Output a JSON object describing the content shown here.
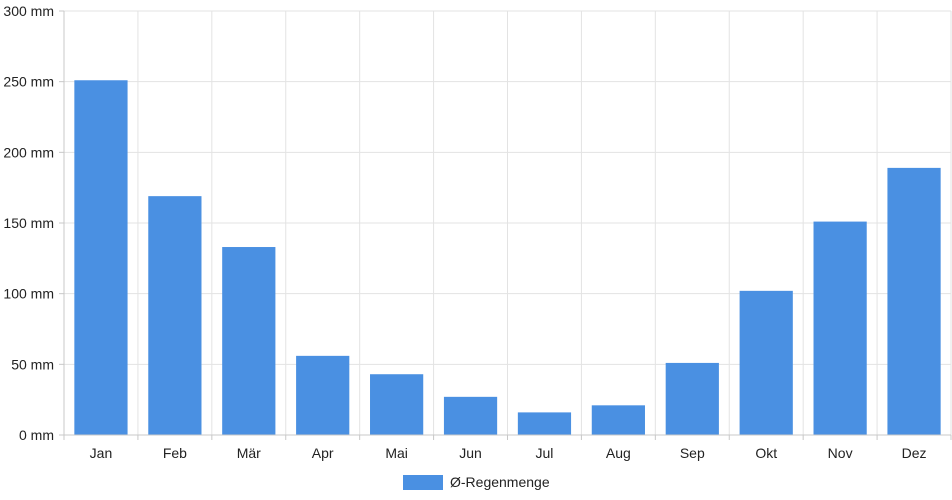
{
  "chart_data": {
    "type": "bar",
    "categories": [
      "Jan",
      "Feb",
      "Mär",
      "Apr",
      "Mai",
      "Jun",
      "Jul",
      "Aug",
      "Sep",
      "Okt",
      "Nov",
      "Dez"
    ],
    "series": [
      {
        "name": "Ø-Regenmenge",
        "values": [
          251,
          169,
          133,
          56,
          43,
          27,
          16,
          21,
          51,
          102,
          151,
          189
        ]
      }
    ],
    "y_ticks": [
      "0 mm",
      "50 mm",
      "100 mm",
      "150 mm",
      "200 mm",
      "250 mm",
      "300 mm"
    ],
    "ylim": [
      0,
      300
    ],
    "y_unit": "mm",
    "grid": true,
    "legend": "bottom-center",
    "colors": {
      "bar": "#4a90e2",
      "grid": "#e3e3e3",
      "axis": "#c8c8c8"
    }
  }
}
